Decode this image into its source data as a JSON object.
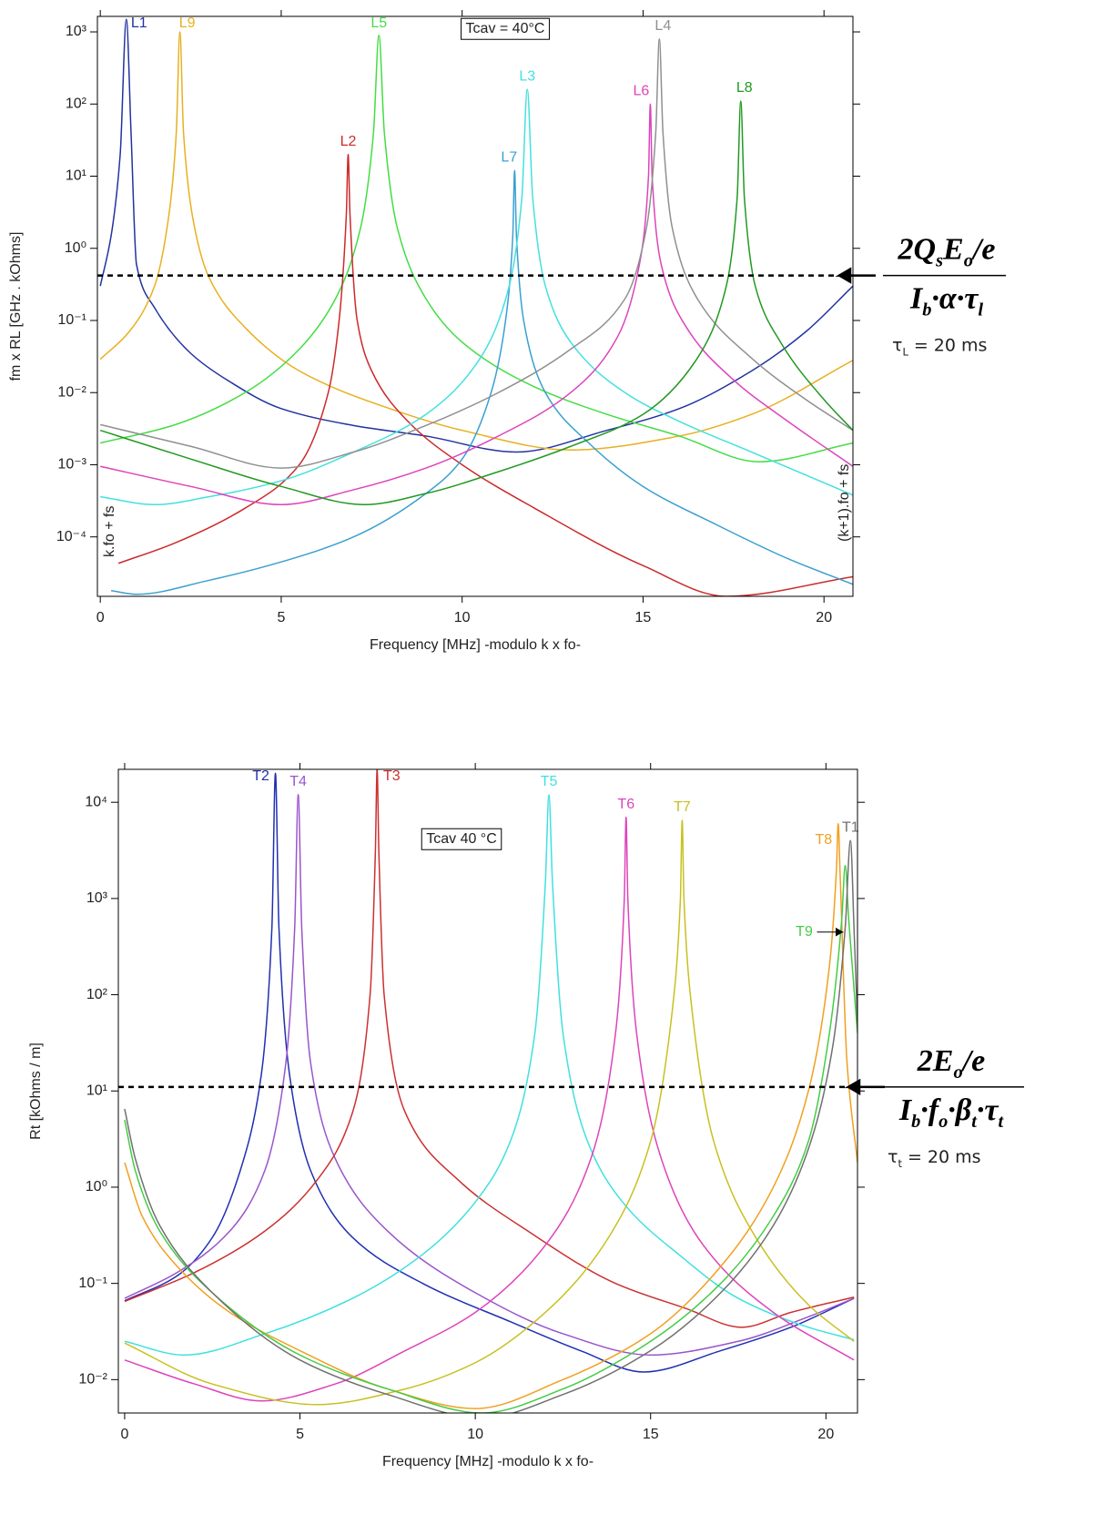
{
  "chart_data": [
    {
      "type": "line",
      "x_label": "Frequency [MHz] -modulo k x fo-",
      "y_label": "fm x RL [GHz . kOhms]",
      "y_scale": "log",
      "xlim": [
        -0.08,
        20.8
      ],
      "ylim": [
        1.5e-05,
        1640
      ],
      "xticks": [
        0,
        5,
        10,
        15,
        20
      ],
      "yticks": [
        {
          "value": 1000,
          "label": "10³"
        },
        {
          "value": 100,
          "label": "10²"
        },
        {
          "value": 10,
          "label": "10¹"
        },
        {
          "value": 1,
          "label": "10⁰"
        },
        {
          "value": 0.1,
          "label": "10⁻¹"
        },
        {
          "value": 0.01,
          "label": "10⁻²"
        },
        {
          "value": 0.001,
          "label": "10⁻³"
        },
        {
          "value": 0.0001,
          "label": "10⁻⁴"
        }
      ],
      "annotations": [
        "Tcav = 40°C",
        "k.fo + fs",
        "(k+1).fo + fs"
      ],
      "threshold": {
        "value": 0.42,
        "numerator": [
          "2Q",
          "s",
          "E",
          "o",
          "/e"
        ],
        "denominator": [
          "I",
          "b",
          "·α·τ",
          "l"
        ],
        "time_constant": [
          "τ",
          "L",
          " = 20 ms"
        ]
      },
      "series": [
        {
          "name": "L1",
          "color": "#2233a0",
          "x": [
            0,
            0.3,
            0.55,
            0.72,
            0.85,
            1.0,
            1.5,
            2.5,
            3.5,
            5,
            7,
            9,
            11.5,
            14,
            16,
            18,
            19.5,
            20.8
          ],
          "values": [
            0.3,
            1.5,
            20,
            1500,
            40,
            0.6,
            0.15,
            0.035,
            0.015,
            0.006,
            0.0035,
            0.0025,
            0.0015,
            0.003,
            0.006,
            0.02,
            0.07,
            0.3
          ]
        },
        {
          "name": "L9",
          "color": "#e8b020",
          "x": [
            0,
            0.8,
            1.5,
            1.9,
            2.1,
            2.2,
            2.3,
            2.6,
            3,
            4,
            5.5,
            8,
            10,
            13,
            16,
            18,
            20.8
          ],
          "values": [
            0.029,
            0.07,
            0.3,
            3,
            40,
            1000,
            40,
            2,
            0.4,
            0.08,
            0.02,
            0.006,
            0.003,
            0.0016,
            0.0025,
            0.005,
            0.028
          ]
        },
        {
          "name": "L5",
          "color": "#44dd44",
          "x": [
            0,
            2,
            4,
            5.5,
            6.5,
            7.2,
            7.55,
            7.7,
            7.85,
            8.2,
            9,
            10,
            12,
            14,
            16,
            18.2,
            20.8
          ],
          "values": [
            0.002,
            0.0035,
            0.01,
            0.04,
            0.2,
            2,
            40,
            900,
            40,
            2,
            0.2,
            0.05,
            0.012,
            0.005,
            0.0025,
            0.0011,
            0.002
          ]
        },
        {
          "name": "L2",
          "color": "#cc2a2a",
          "x": [
            0.5,
            2,
            4,
            5.5,
            6.3,
            6.6,
            6.8,
            6.85,
            6.9,
            7.1,
            7.5,
            8.5,
            10,
            12,
            15,
            17.3,
            20.8
          ],
          "values": [
            4.3e-05,
            8e-05,
            0.00025,
            0.001,
            0.01,
            0.1,
            3,
            20,
            3,
            0.1,
            0.02,
            0.004,
            0.001,
            0.00025,
            4e-05,
            1.5e-05,
            2.8e-05
          ]
        },
        {
          "name": "L7",
          "color": "#3aa0d0",
          "x": [
            0.3,
            1,
            3,
            5,
            7,
            9,
            10,
            10.8,
            11.2,
            11.4,
            11.45,
            11.5,
            11.7,
            12.3,
            13.5,
            15,
            17,
            19,
            20.8
          ],
          "values": [
            1.8e-05,
            1.6e-05,
            2.5e-05,
            4.5e-05,
            0.0001,
            0.0004,
            0.0012,
            0.01,
            0.1,
            1.5,
            12,
            1.5,
            0.1,
            0.01,
            0.002,
            0.0005,
            0.00015,
            5e-05,
            2.2e-05
          ]
        },
        {
          "name": "L3",
          "color": "#44e0e0",
          "x": [
            0,
            1.5,
            3,
            5,
            7,
            9,
            10.5,
            11.3,
            11.65,
            11.8,
            11.95,
            12.3,
            13,
            14.5,
            16,
            18,
            20.8
          ],
          "values": [
            0.00036,
            0.00028,
            0.00036,
            0.0006,
            0.0015,
            0.005,
            0.03,
            0.3,
            5,
            160,
            5,
            0.3,
            0.05,
            0.01,
            0.004,
            0.0015,
            0.00038
          ]
        },
        {
          "name": "L6",
          "color": "#dd44bb",
          "x": [
            0,
            2.5,
            5,
            7,
            9,
            11,
            13,
            14.3,
            14.9,
            15.15,
            15.2,
            15.25,
            15.5,
            16.2,
            17.5,
            19,
            20.8
          ],
          "values": [
            0.00095,
            0.0005,
            0.00028,
            0.00045,
            0.0009,
            0.0025,
            0.01,
            0.06,
            0.6,
            10,
            100,
            10,
            0.6,
            0.08,
            0.015,
            0.004,
            0.00095
          ]
        },
        {
          "name": "L4",
          "color": "#909090",
          "x": [
            0,
            2.5,
            5,
            7,
            9,
            11,
            13,
            14.5,
            15.1,
            15.35,
            15.45,
            15.55,
            15.8,
            16.5,
            18,
            19.5,
            20.8
          ],
          "values": [
            0.0036,
            0.0018,
            0.0009,
            0.0015,
            0.0035,
            0.01,
            0.04,
            0.2,
            2,
            40,
            800,
            40,
            2,
            0.2,
            0.03,
            0.008,
            0.003
          ]
        },
        {
          "name": "L8",
          "color": "#229922",
          "x": [
            0,
            2.5,
            5,
            7.3,
            9,
            11,
            13,
            15,
            16.5,
            17.3,
            17.6,
            17.7,
            17.8,
            18.1,
            18.8,
            20,
            20.8
          ],
          "values": [
            0.003,
            0.0012,
            0.0005,
            0.00028,
            0.0004,
            0.0008,
            0.0018,
            0.005,
            0.03,
            0.3,
            5,
            110,
            5,
            0.3,
            0.05,
            0.008,
            0.003
          ]
        }
      ]
    },
    {
      "type": "line",
      "x_label": "Frequency [MHz] -modulo k x fo-",
      "y_label": "Rt [kOhms / m]",
      "y_scale": "log",
      "xlim": [
        -0.18,
        20.9
      ],
      "ylim": [
        0.0045,
        22000
      ],
      "xticks": [
        0,
        5,
        10,
        15,
        20
      ],
      "yticks": [
        {
          "value": 10000,
          "label": "10⁴"
        },
        {
          "value": 1000,
          "label": "10³"
        },
        {
          "value": 100,
          "label": "10²"
        },
        {
          "value": 10,
          "label": "10¹"
        },
        {
          "value": 1,
          "label": "10⁰"
        },
        {
          "value": 0.1,
          "label": "10⁻¹"
        },
        {
          "value": 0.01,
          "label": "10⁻²"
        }
      ],
      "annotations": [
        "Tcav 40 °C"
      ],
      "threshold": {
        "value": 11,
        "numerator": [
          "2E",
          "o",
          "/e"
        ],
        "denominator": [
          "I",
          "b",
          "·f",
          "o",
          "·β",
          "t",
          "·τ",
          "t"
        ],
        "time_constant": [
          "τ",
          "t",
          " = 20 ms"
        ]
      },
      "series": [
        {
          "name": "T2",
          "color": "#2030b0",
          "x": [
            0,
            1.5,
            2.5,
            3.3,
            3.9,
            4.2,
            4.3,
            4.4,
            4.7,
            5.3,
            6.5,
            8.5,
            11,
            13,
            14.8,
            17,
            19,
            20.8
          ],
          "values": [
            0.066,
            0.12,
            0.3,
            1.5,
            15,
            500,
            20000,
            500,
            15,
            1.5,
            0.3,
            0.1,
            0.04,
            0.02,
            0.012,
            0.02,
            0.035,
            0.07
          ]
        },
        {
          "name": "T4",
          "color": "#9955cc",
          "x": [
            0,
            1.5,
            3,
            4,
            4.6,
            4.85,
            4.95,
            5.05,
            5.3,
            6,
            7.5,
            10,
            12.5,
            15,
            17.5,
            19.5,
            20.8
          ],
          "values": [
            0.07,
            0.13,
            0.35,
            1.5,
            20,
            500,
            12000,
            500,
            20,
            2,
            0.35,
            0.08,
            0.03,
            0.018,
            0.025,
            0.045,
            0.07
          ]
        },
        {
          "name": "T3",
          "color": "#cc3030",
          "x": [
            0,
            2,
            4,
            5.5,
            6.5,
            7,
            7.15,
            7.2,
            7.25,
            7.4,
            8,
            9.5,
            11.5,
            14,
            16,
            17.6,
            19,
            20.8
          ],
          "values": [
            0.065,
            0.13,
            0.35,
            1.2,
            6,
            100,
            3000,
            22000,
            3000,
            100,
            6,
            1.2,
            0.35,
            0.1,
            0.055,
            0.035,
            0.05,
            0.072
          ]
        },
        {
          "name": "T5",
          "color": "#40e0e0",
          "x": [
            0,
            1.7,
            4,
            6.5,
            8.5,
            10,
            11,
            11.7,
            12,
            12.1,
            12.2,
            12.5,
            13.2,
            14.2,
            15.8,
            17.5,
            19.5,
            20.8
          ],
          "values": [
            0.025,
            0.018,
            0.03,
            0.07,
            0.2,
            0.7,
            3,
            40,
            1500,
            12000,
            1500,
            40,
            3,
            0.7,
            0.2,
            0.07,
            0.035,
            0.026
          ]
        },
        {
          "name": "T6",
          "color": "#dd44bb",
          "x": [
            0,
            2,
            3.9,
            6,
            8,
            10,
            12,
            13.3,
            14,
            14.25,
            14.3,
            14.35,
            14.6,
            15.3,
            16.5,
            18.5,
            20.8
          ],
          "values": [
            0.016,
            0.009,
            0.006,
            0.009,
            0.02,
            0.05,
            0.25,
            2,
            40,
            1000,
            7000,
            1000,
            40,
            2,
            0.25,
            0.05,
            0.016
          ]
        },
        {
          "name": "T7",
          "color": "#c8c020",
          "x": [
            0,
            2.5,
            5.5,
            8,
            10,
            12,
            13.8,
            15,
            15.6,
            15.85,
            15.9,
            15.95,
            16.2,
            16.8,
            18,
            19.5,
            20.8
          ],
          "values": [
            0.024,
            0.009,
            0.0055,
            0.008,
            0.015,
            0.05,
            0.3,
            3,
            60,
            1000,
            6500,
            1000,
            60,
            3,
            0.3,
            0.06,
            0.025
          ]
        },
        {
          "name": "T8",
          "color": "#f0a020",
          "x": [
            0,
            0.5,
            1.5,
            3,
            5,
            7.5,
            10,
            12.5,
            15,
            17,
            18.5,
            19.5,
            20.1,
            20.3,
            20.35,
            20.4,
            20.6,
            20.9
          ],
          "values": [
            1.8,
            0.5,
            0.15,
            0.05,
            0.02,
            0.008,
            0.005,
            0.01,
            0.03,
            0.15,
            1,
            10,
            200,
            2000,
            6000,
            2000,
            20,
            1.8
          ]
        },
        {
          "name": "T9",
          "color": "#44cc44",
          "x": [
            0,
            0.3,
            1,
            2.5,
            5,
            7.5,
            10.2,
            12.5,
            15,
            17,
            18.5,
            19.5,
            20.1,
            20.45,
            20.55,
            20.65,
            20.9
          ],
          "values": [
            5,
            1.5,
            0.35,
            0.08,
            0.018,
            0.008,
            0.0045,
            0.008,
            0.025,
            0.1,
            0.5,
            3,
            40,
            600,
            2200,
            600,
            40
          ]
        },
        {
          "name": "T1",
          "color": "#707070",
          "x": [
            0,
            0.3,
            1,
            2.5,
            5,
            7.5,
            10.2,
            12.5,
            15,
            17,
            18.5,
            19.5,
            20.2,
            20.55,
            20.7,
            20.8,
            20.9
          ],
          "values": [
            6.5,
            2,
            0.4,
            0.08,
            0.016,
            0.007,
            0.004,
            0.007,
            0.02,
            0.08,
            0.4,
            2.5,
            30,
            500,
            4000,
            500,
            50
          ]
        }
      ]
    }
  ]
}
